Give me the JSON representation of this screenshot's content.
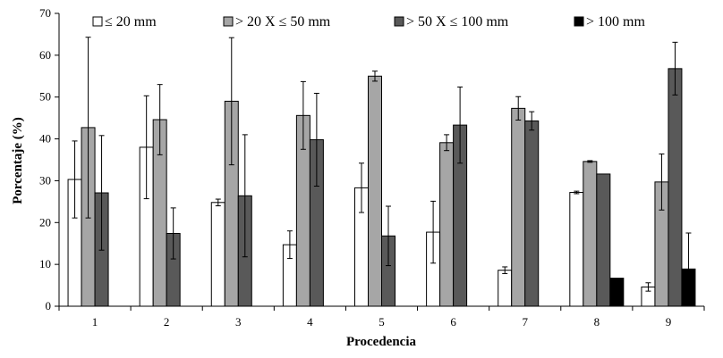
{
  "chart_data": {
    "type": "bar",
    "title": "",
    "xlabel": "Procedencia",
    "ylabel": "Porcentaje (%)",
    "ylim": [
      0,
      70
    ],
    "yticks": [
      0,
      10,
      20,
      30,
      40,
      50,
      60,
      70
    ],
    "grid": false,
    "error_bars": true,
    "legend_position": "top",
    "categories": [
      "1",
      "2",
      "3",
      "4",
      "5",
      "6",
      "7",
      "8",
      "9"
    ],
    "series": [
      {
        "name": "≤ 20 mm",
        "color": "#ffffff",
        "values": [
          30.3,
          38.0,
          24.8,
          14.7,
          28.3,
          17.7,
          8.6,
          27.2,
          4.6
        ],
        "errors": [
          9.2,
          12.3,
          0.8,
          3.3,
          5.9,
          7.4,
          0.8,
          0.3,
          1.0
        ]
      },
      {
        "name": "> 20 X ≤ 50 mm",
        "color": "#a6a6a6",
        "values": [
          42.7,
          44.6,
          49.0,
          45.6,
          55.0,
          39.1,
          47.3,
          34.6,
          29.7
        ],
        "errors": [
          21.6,
          8.4,
          15.2,
          8.1,
          1.2,
          1.9,
          2.8,
          0.2,
          6.7
        ]
      },
      {
        "name": "> 50 X ≤ 100 mm",
        "color": "#595959",
        "values": [
          27.1,
          17.4,
          26.4,
          39.8,
          16.8,
          43.3,
          44.3,
          31.6,
          56.8
        ],
        "errors": [
          13.7,
          6.1,
          14.6,
          11.1,
          7.1,
          9.1,
          2.2,
          0,
          6.3
        ]
      },
      {
        "name": "> 100 mm",
        "color": "#000000",
        "values": [
          0,
          0,
          0,
          0,
          0,
          0,
          0,
          6.7,
          8.9
        ],
        "errors": [
          0,
          0,
          0,
          0,
          0,
          0,
          0,
          0,
          8.6
        ]
      }
    ]
  }
}
